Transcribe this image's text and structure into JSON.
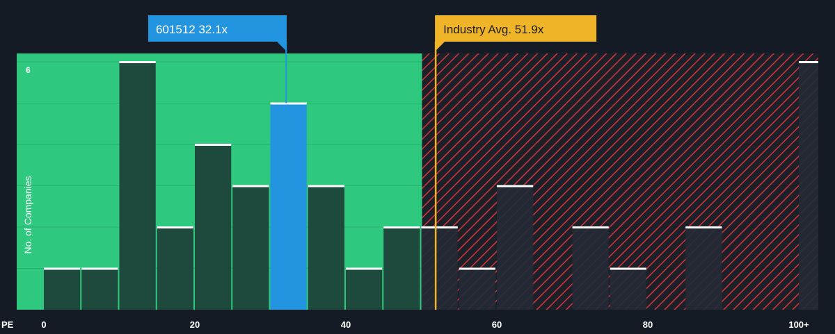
{
  "chart_data": {
    "type": "bar",
    "x_axis_label": "PE",
    "y_axis_label": "No. of Companies",
    "x_ticks": [
      {
        "value": 0,
        "label": "0"
      },
      {
        "value": 20,
        "label": "20"
      },
      {
        "value": 40,
        "label": "40"
      },
      {
        "value": 60,
        "label": "60"
      },
      {
        "value": 80,
        "label": "80"
      },
      {
        "value": 100,
        "label": "100+"
      }
    ],
    "y_ticks": [
      {
        "value": 6,
        "label": "6"
      }
    ],
    "xlim": [
      0,
      100
    ],
    "ylim": [
      0,
      6
    ],
    "bin_width": 5,
    "bins": [
      {
        "x0": 0,
        "value": 1
      },
      {
        "x0": 5,
        "value": 1
      },
      {
        "x0": 10,
        "value": 6
      },
      {
        "x0": 15,
        "value": 2
      },
      {
        "x0": 20,
        "value": 4
      },
      {
        "x0": 25,
        "value": 3
      },
      {
        "x0": 30,
        "value": 5,
        "highlight": true
      },
      {
        "x0": 35,
        "value": 3
      },
      {
        "x0": 40,
        "value": 1
      },
      {
        "x0": 45,
        "value": 2
      },
      {
        "x0": 50,
        "value": 2
      },
      {
        "x0": 55,
        "value": 1
      },
      {
        "x0": 60,
        "value": 3
      },
      {
        "x0": 70,
        "value": 2
      },
      {
        "x0": 75,
        "value": 1
      },
      {
        "x0": 85,
        "value": 2
      },
      {
        "x0": 100,
        "value": 6
      }
    ],
    "company": {
      "label": "601512 32.1x",
      "value": 32.1
    },
    "industry_avg": {
      "label": "Industry Avg. 51.9x",
      "value": 51.9
    },
    "good_value_region": {
      "from": 0,
      "to": 50
    },
    "colors": {
      "background": "#151b24",
      "good_region": "#2ec97f",
      "over_region_hatch": "#e0353b",
      "bar_in_good": "#1d4a3c",
      "bar_in_over": "#242a35",
      "bar_top": "#ffffff",
      "highlight_bar": "#2394e0",
      "company_callout": "#2394e0",
      "industry_callout": "#f0b428",
      "gridline": "#3b424c",
      "axis_text": "#ffffff"
    }
  }
}
